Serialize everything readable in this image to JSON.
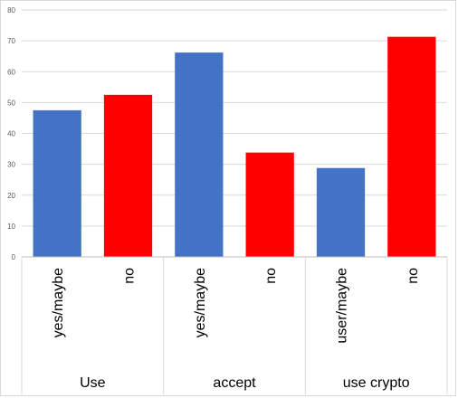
{
  "chart_data": {
    "type": "bar",
    "title": "",
    "xlabel": "",
    "ylabel": "",
    "ylim": [
      0,
      80
    ],
    "yticks": [
      0,
      10,
      20,
      30,
      40,
      50,
      60,
      70,
      80
    ],
    "grid": true,
    "legend": "none",
    "groups": [
      {
        "label": "Use",
        "bars": [
          {
            "category": "yes/maybe",
            "value": 47.5,
            "color": "#4472C4"
          },
          {
            "category": "no",
            "value": 52.5,
            "color": "#FF0000"
          }
        ]
      },
      {
        "label": "accept",
        "bars": [
          {
            "category": "yes/maybe",
            "value": 66.2,
            "color": "#4472C4"
          },
          {
            "category": "no",
            "value": 33.8,
            "color": "#FF0000"
          }
        ]
      },
      {
        "label": "use crypto",
        "bars": [
          {
            "category": "user/maybe",
            "value": 28.8,
            "color": "#4472C4"
          },
          {
            "category": "no",
            "value": 71.3,
            "color": "#FF0000"
          }
        ]
      }
    ]
  }
}
